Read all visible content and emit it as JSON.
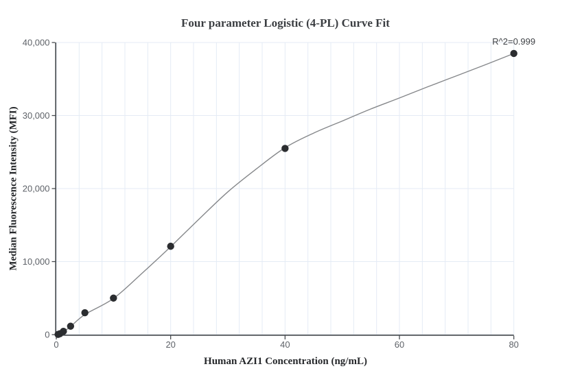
{
  "chart_data": {
    "type": "scatter",
    "title": "Four parameter Logistic (4-PL) Curve Fit",
    "xlabel": "Human AZI1 Concentration (ng/mL)",
    "ylabel": "Median Fluorescence Intensity (MFI)",
    "annotation": "R^2=0.999",
    "legend": "none",
    "grid": "on",
    "x_range": [
      0,
      80
    ],
    "y_range": [
      0,
      40000
    ],
    "x_grid_step": 4,
    "x_ticks": [
      {
        "v": 0,
        "label": "0"
      },
      {
        "v": 20,
        "label": "20"
      },
      {
        "v": 40,
        "label": "40"
      },
      {
        "v": 60,
        "label": "60"
      },
      {
        "v": 80,
        "label": "80"
      }
    ],
    "y_ticks": [
      {
        "v": 0,
        "label": "0"
      },
      {
        "v": 10000,
        "label": "10,000"
      },
      {
        "v": 20000,
        "label": "20,000"
      },
      {
        "v": 30000,
        "label": "30,000"
      },
      {
        "v": 40000,
        "label": "40,000"
      }
    ],
    "points": {
      "name": "standard-curve-samples",
      "x": [
        0.3125,
        0.625,
        1.25,
        2.5,
        5,
        10,
        20,
        40,
        80
      ],
      "y": [
        30,
        120,
        450,
        1150,
        3000,
        5000,
        12100,
        25500,
        38500
      ]
    },
    "fit_curve": {
      "name": "4PL-fit",
      "x": [
        0,
        1.25,
        2.5,
        5,
        10,
        15,
        20,
        25,
        30,
        35,
        40,
        45,
        50,
        55,
        60,
        65,
        70,
        75,
        80
      ],
      "y": [
        0,
        420,
        1100,
        2750,
        4950,
        8400,
        12050,
        15850,
        19550,
        22700,
        25600,
        27600,
        29250,
        30900,
        32400,
        33950,
        35450,
        36950,
        38500
      ]
    },
    "colors": {
      "point": "#2b2d30",
      "curve": "#85878a",
      "grid": "#e4ebf5",
      "axis": "#42464a",
      "tick_label": "#5e6268",
      "title": "#3b3e42",
      "axis_title": "#26282b",
      "annotation": "#3f4246",
      "background": "#ffffff"
    }
  }
}
